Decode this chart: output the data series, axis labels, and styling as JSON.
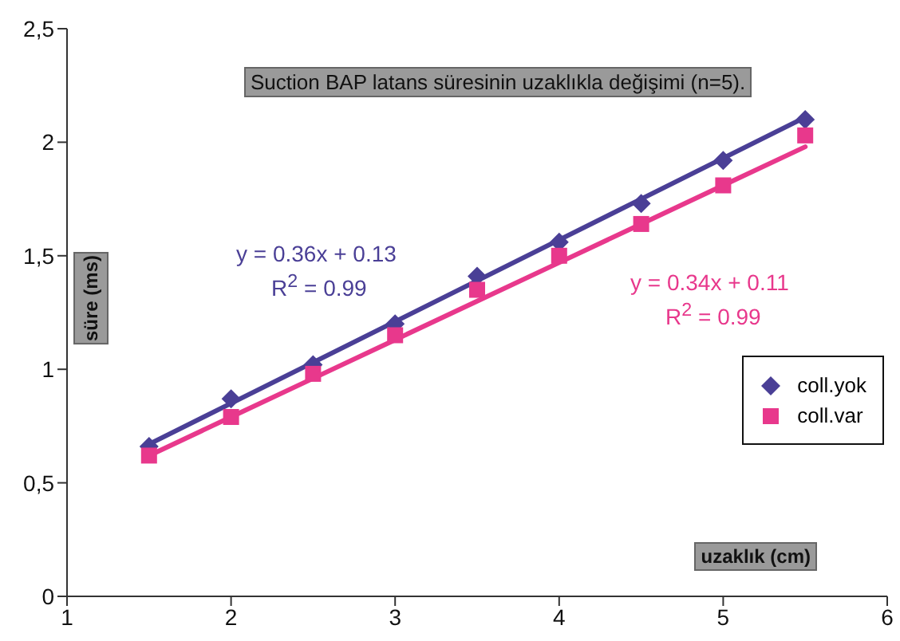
{
  "chart_data": {
    "type": "scatter",
    "title": "Suction BAP latans süresinin uzaklıkla değişimi (n=5).",
    "xlabel": "uzaklık (cm)",
    "ylabel": "süre (ms)",
    "x": [
      1.5,
      2,
      2.5,
      3,
      3.5,
      4,
      4.5,
      5,
      5.5
    ],
    "series": [
      {
        "name": "coll.yok",
        "marker": "diamond",
        "color": "#4a3f96",
        "values": [
          0.66,
          0.87,
          1.02,
          1.2,
          1.41,
          1.56,
          1.73,
          1.92,
          2.1
        ]
      },
      {
        "name": "coll.var",
        "marker": "square",
        "color": "#e8388c",
        "values": [
          0.62,
          0.79,
          0.98,
          1.15,
          1.35,
          1.5,
          1.64,
          1.81,
          2.03
        ]
      },
      {
        "type": "line",
        "marker": "none",
        "color": "#4a3f96",
        "values": [
          0.67,
          0.85,
          1.03,
          1.21,
          1.39,
          1.57,
          1.75,
          1.93,
          2.11
        ]
      },
      {
        "type": "line",
        "marker": "none",
        "color": "#e8388c",
        "values": [
          0.62,
          0.79,
          0.96,
          1.13,
          1.3,
          1.47,
          1.64,
          1.81,
          1.98
        ]
      }
    ],
    "annotations": [
      "y = 0.36x + 0.13",
      "R$^{2}$ = 0.99",
      "y = 0.34x + 0.11",
      "R$^{2}$ = 0.99"
    ],
    "xlim": [
      1,
      6
    ],
    "xticks": [
      1,
      2,
      3,
      4,
      5,
      6
    ],
    "ylim": [
      0,
      2.5
    ],
    "yticks": [
      0,
      {
        "value": 0.5,
        "label": "0,5"
      },
      1,
      {
        "value": 1.5,
        "label": "1,5"
      },
      2,
      {
        "value": 2.5,
        "label": "2,5"
      }
    ],
    "legend": "right"
  }
}
